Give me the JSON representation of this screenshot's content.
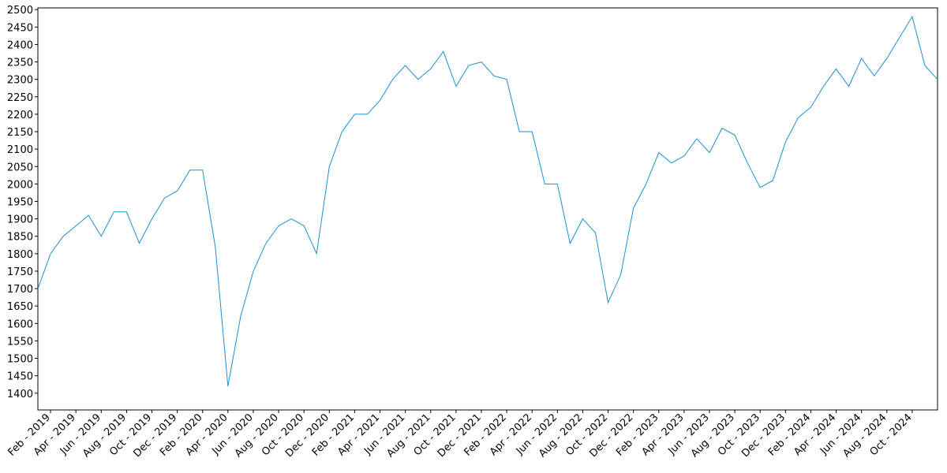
{
  "chart_data": {
    "type": "line",
    "x": [
      "2019-01",
      "2019-02",
      "2019-03",
      "2019-04",
      "2019-05",
      "2019-06",
      "2019-07",
      "2019-08",
      "2019-09",
      "2019-10",
      "2019-11",
      "2019-12",
      "2020-01",
      "2020-02",
      "2020-03",
      "2020-04",
      "2020-05",
      "2020-06",
      "2020-07",
      "2020-08",
      "2020-09",
      "2020-10",
      "2020-11",
      "2020-12",
      "2021-01",
      "2021-02",
      "2021-03",
      "2021-04",
      "2021-05",
      "2021-06",
      "2021-07",
      "2021-08",
      "2021-09",
      "2021-10",
      "2021-11",
      "2021-12",
      "2022-01",
      "2022-02",
      "2022-03",
      "2022-04",
      "2022-05",
      "2022-06",
      "2022-07",
      "2022-08",
      "2022-09",
      "2022-10",
      "2022-11",
      "2022-12",
      "2023-01",
      "2023-02",
      "2023-03",
      "2023-04",
      "2023-05",
      "2023-06",
      "2023-07",
      "2023-08",
      "2023-09",
      "2023-10",
      "2023-11",
      "2023-12",
      "2024-01",
      "2024-02",
      "2024-03",
      "2024-04",
      "2024-05",
      "2024-06",
      "2024-07",
      "2024-08",
      "2024-09",
      "2024-10",
      "2024-11",
      "2024-12"
    ],
    "series": [
      {
        "color": "#1a8fd1",
        "values": [
          1700,
          1800,
          1850,
          1880,
          1910,
          1850,
          1920,
          1920,
          1830,
          1900,
          1960,
          1980,
          2040,
          2040,
          1820,
          1420,
          1620,
          1750,
          1830,
          1880,
          1900,
          1880,
          1800,
          2050,
          2150,
          2200,
          2200,
          2240,
          2300,
          2340,
          2300,
          2330,
          2380,
          2280,
          2340,
          2350,
          2310,
          2300,
          2150,
          2150,
          2000,
          2000,
          1830,
          1900,
          1860,
          1660,
          1740,
          1930,
          2000,
          2090,
          2060,
          2080,
          2130,
          2090,
          2160,
          2140,
          2060,
          1990,
          2010,
          2120,
          2190,
          2220,
          2280,
          2330,
          2280,
          2360,
          2310,
          2360,
          2420,
          2480,
          2340,
          2300
        ]
      }
    ],
    "xlim": [
      "2019-01",
      "2024-12"
    ],
    "ylim": [
      1352,
      2505
    ],
    "yticks": [
      1400,
      1450,
      1500,
      1550,
      1600,
      1650,
      1700,
      1750,
      1800,
      1850,
      1900,
      1950,
      2000,
      2050,
      2100,
      2150,
      2200,
      2250,
      2300,
      2350,
      2400,
      2450,
      2500
    ],
    "xticks": [
      {
        "value": "2019-02",
        "label": "Feb - 2019"
      },
      {
        "value": "2019-04",
        "label": "Apr - 2019"
      },
      {
        "value": "2019-06",
        "label": "Jun - 2019"
      },
      {
        "value": "2019-08",
        "label": "Aug - 2019"
      },
      {
        "value": "2019-10",
        "label": "Oct - 2019"
      },
      {
        "value": "2019-12",
        "label": "Dec - 2019"
      },
      {
        "value": "2020-02",
        "label": "Feb - 2020"
      },
      {
        "value": "2020-04",
        "label": "Apr - 2020"
      },
      {
        "value": "2020-06",
        "label": "Jun - 2020"
      },
      {
        "value": "2020-08",
        "label": "Aug - 2020"
      },
      {
        "value": "2020-10",
        "label": "Oct - 2020"
      },
      {
        "value": "2020-12",
        "label": "Dec - 2020"
      },
      {
        "value": "2021-02",
        "label": "Feb - 2021"
      },
      {
        "value": "2021-04",
        "label": "Apr - 2021"
      },
      {
        "value": "2021-06",
        "label": "Jun - 2021"
      },
      {
        "value": "2021-08",
        "label": "Aug - 2021"
      },
      {
        "value": "2021-10",
        "label": "Oct - 2021"
      },
      {
        "value": "2021-12",
        "label": "Dec - 2021"
      },
      {
        "value": "2022-02",
        "label": "Feb - 2022"
      },
      {
        "value": "2022-04",
        "label": "Apr - 2022"
      },
      {
        "value": "2022-06",
        "label": "Jun - 2022"
      },
      {
        "value": "2022-08",
        "label": "Aug - 2022"
      },
      {
        "value": "2022-10",
        "label": "Oct - 2022"
      },
      {
        "value": "2022-12",
        "label": "Dec - 2022"
      },
      {
        "value": "2023-02",
        "label": "Feb - 2023"
      },
      {
        "value": "2023-04",
        "label": "Apr - 2023"
      },
      {
        "value": "2023-06",
        "label": "Jun - 2023"
      },
      {
        "value": "2023-08",
        "label": "Aug - 2023"
      },
      {
        "value": "2023-10",
        "label": "Oct - 2023"
      },
      {
        "value": "2023-12",
        "label": "Dec - 2023"
      },
      {
        "value": "2024-02",
        "label": "Feb - 2024"
      },
      {
        "value": "2024-04",
        "label": "Apr - 2024"
      },
      {
        "value": "2024-06",
        "label": "Jun - 2024"
      },
      {
        "value": "2024-08",
        "label": "Aug - 2024"
      },
      {
        "value": "2024-10",
        "label": "Oct - 2024"
      }
    ],
    "grid": false
  }
}
